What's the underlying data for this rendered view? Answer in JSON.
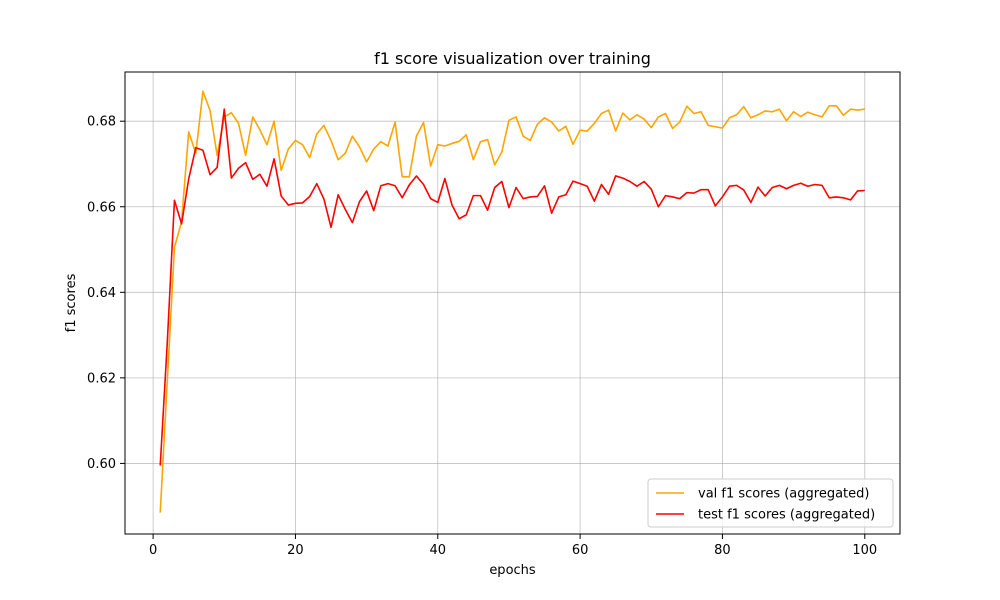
{
  "chart_data": {
    "type": "line",
    "title": "f1 score visualization over training",
    "xlabel": "epochs",
    "ylabel": "f1 scores",
    "xlim": [
      -3.95,
      104.95
    ],
    "ylim": [
      0.5835,
      0.6915
    ],
    "xticks": [
      0,
      20,
      40,
      60,
      80,
      100
    ],
    "yticks": [
      0.6,
      0.62,
      0.64,
      0.66,
      0.68
    ],
    "xtick_labels": [
      "0",
      "20",
      "40",
      "60",
      "80",
      "100"
    ],
    "ytick_labels": [
      "0.60",
      "0.62",
      "0.64",
      "0.66",
      "0.68"
    ],
    "grid": true,
    "legend_position": "lower-right",
    "x": [
      1,
      2,
      3,
      4,
      5,
      6,
      7,
      8,
      9,
      10,
      11,
      12,
      13,
      14,
      15,
      16,
      17,
      18,
      19,
      20,
      21,
      22,
      23,
      24,
      25,
      26,
      27,
      28,
      29,
      30,
      31,
      32,
      33,
      34,
      35,
      36,
      37,
      38,
      39,
      40,
      41,
      42,
      43,
      44,
      45,
      46,
      47,
      48,
      49,
      50,
      51,
      52,
      53,
      54,
      55,
      56,
      57,
      58,
      59,
      60,
      61,
      62,
      63,
      64,
      65,
      66,
      67,
      68,
      69,
      70,
      71,
      72,
      73,
      74,
      75,
      76,
      77,
      78,
      79,
      80,
      81,
      82,
      83,
      84,
      85,
      86,
      87,
      88,
      89,
      90,
      91,
      92,
      93,
      94,
      95,
      96,
      97,
      98,
      99,
      100
    ],
    "series": [
      {
        "name": "val f1 scores (aggregated)",
        "color": "#ffa500",
        "values": [
          0.5885,
          0.6195,
          0.6505,
          0.6565,
          0.6775,
          0.6725,
          0.687,
          0.6825,
          0.672,
          0.681,
          0.682,
          0.6795,
          0.672,
          0.681,
          0.678,
          0.6745,
          0.68,
          0.6685,
          0.6735,
          0.6755,
          0.6745,
          0.6715,
          0.677,
          0.679,
          0.6755,
          0.671,
          0.6725,
          0.6765,
          0.674,
          0.6705,
          0.6735,
          0.6752,
          0.6742,
          0.6798,
          0.667,
          0.667,
          0.6765,
          0.6797,
          0.6695,
          0.6745,
          0.6742,
          0.6748,
          0.6753,
          0.6768,
          0.671,
          0.6752,
          0.6757,
          0.6698,
          0.6728,
          0.6802,
          0.681,
          0.6765,
          0.6755,
          0.6793,
          0.6808,
          0.6798,
          0.6777,
          0.6788,
          0.6746,
          0.6779,
          0.6777,
          0.6795,
          0.6818,
          0.6826,
          0.6777,
          0.6819,
          0.6803,
          0.6815,
          0.6805,
          0.6785,
          0.681,
          0.6818,
          0.6783,
          0.6798,
          0.6835,
          0.6818,
          0.6822,
          0.679,
          0.6787,
          0.6784,
          0.6808,
          0.6815,
          0.6834,
          0.6808,
          0.6815,
          0.6824,
          0.6822,
          0.6828,
          0.6801,
          0.6822,
          0.6811,
          0.6821,
          0.6815,
          0.681,
          0.6836,
          0.6836,
          0.6814,
          0.6828,
          0.6826,
          0.6828
        ]
      },
      {
        "name": "test f1 scores (aggregated)",
        "color": "#ff0000",
        "values": [
          0.5995,
          0.6285,
          0.6615,
          0.656,
          0.6665,
          0.6738,
          0.6732,
          0.6675,
          0.6692,
          0.6828,
          0.6667,
          0.669,
          0.6703,
          0.6664,
          0.6676,
          0.6648,
          0.6712,
          0.6625,
          0.6604,
          0.6608,
          0.6609,
          0.6624,
          0.6654,
          0.6618,
          0.6552,
          0.6628,
          0.6594,
          0.6563,
          0.6612,
          0.6637,
          0.6591,
          0.6649,
          0.6654,
          0.6649,
          0.6621,
          0.6651,
          0.6672,
          0.6652,
          0.6619,
          0.661,
          0.6666,
          0.6604,
          0.6572,
          0.6581,
          0.6626,
          0.6626,
          0.6592,
          0.6645,
          0.6659,
          0.6598,
          0.6645,
          0.6619,
          0.6623,
          0.6624,
          0.6649,
          0.6585,
          0.6623,
          0.6628,
          0.666,
          0.6654,
          0.6648,
          0.6613,
          0.6652,
          0.6629,
          0.6672,
          0.6667,
          0.6659,
          0.6648,
          0.6659,
          0.6641,
          0.66,
          0.6626,
          0.6623,
          0.6619,
          0.6633,
          0.6632,
          0.664,
          0.664,
          0.6602,
          0.6623,
          0.6648,
          0.665,
          0.6639,
          0.661,
          0.6646,
          0.6625,
          0.6645,
          0.665,
          0.6642,
          0.665,
          0.6655,
          0.6648,
          0.6652,
          0.665,
          0.6621,
          0.6623,
          0.6621,
          0.6616,
          0.6637,
          0.6638
        ]
      }
    ]
  }
}
